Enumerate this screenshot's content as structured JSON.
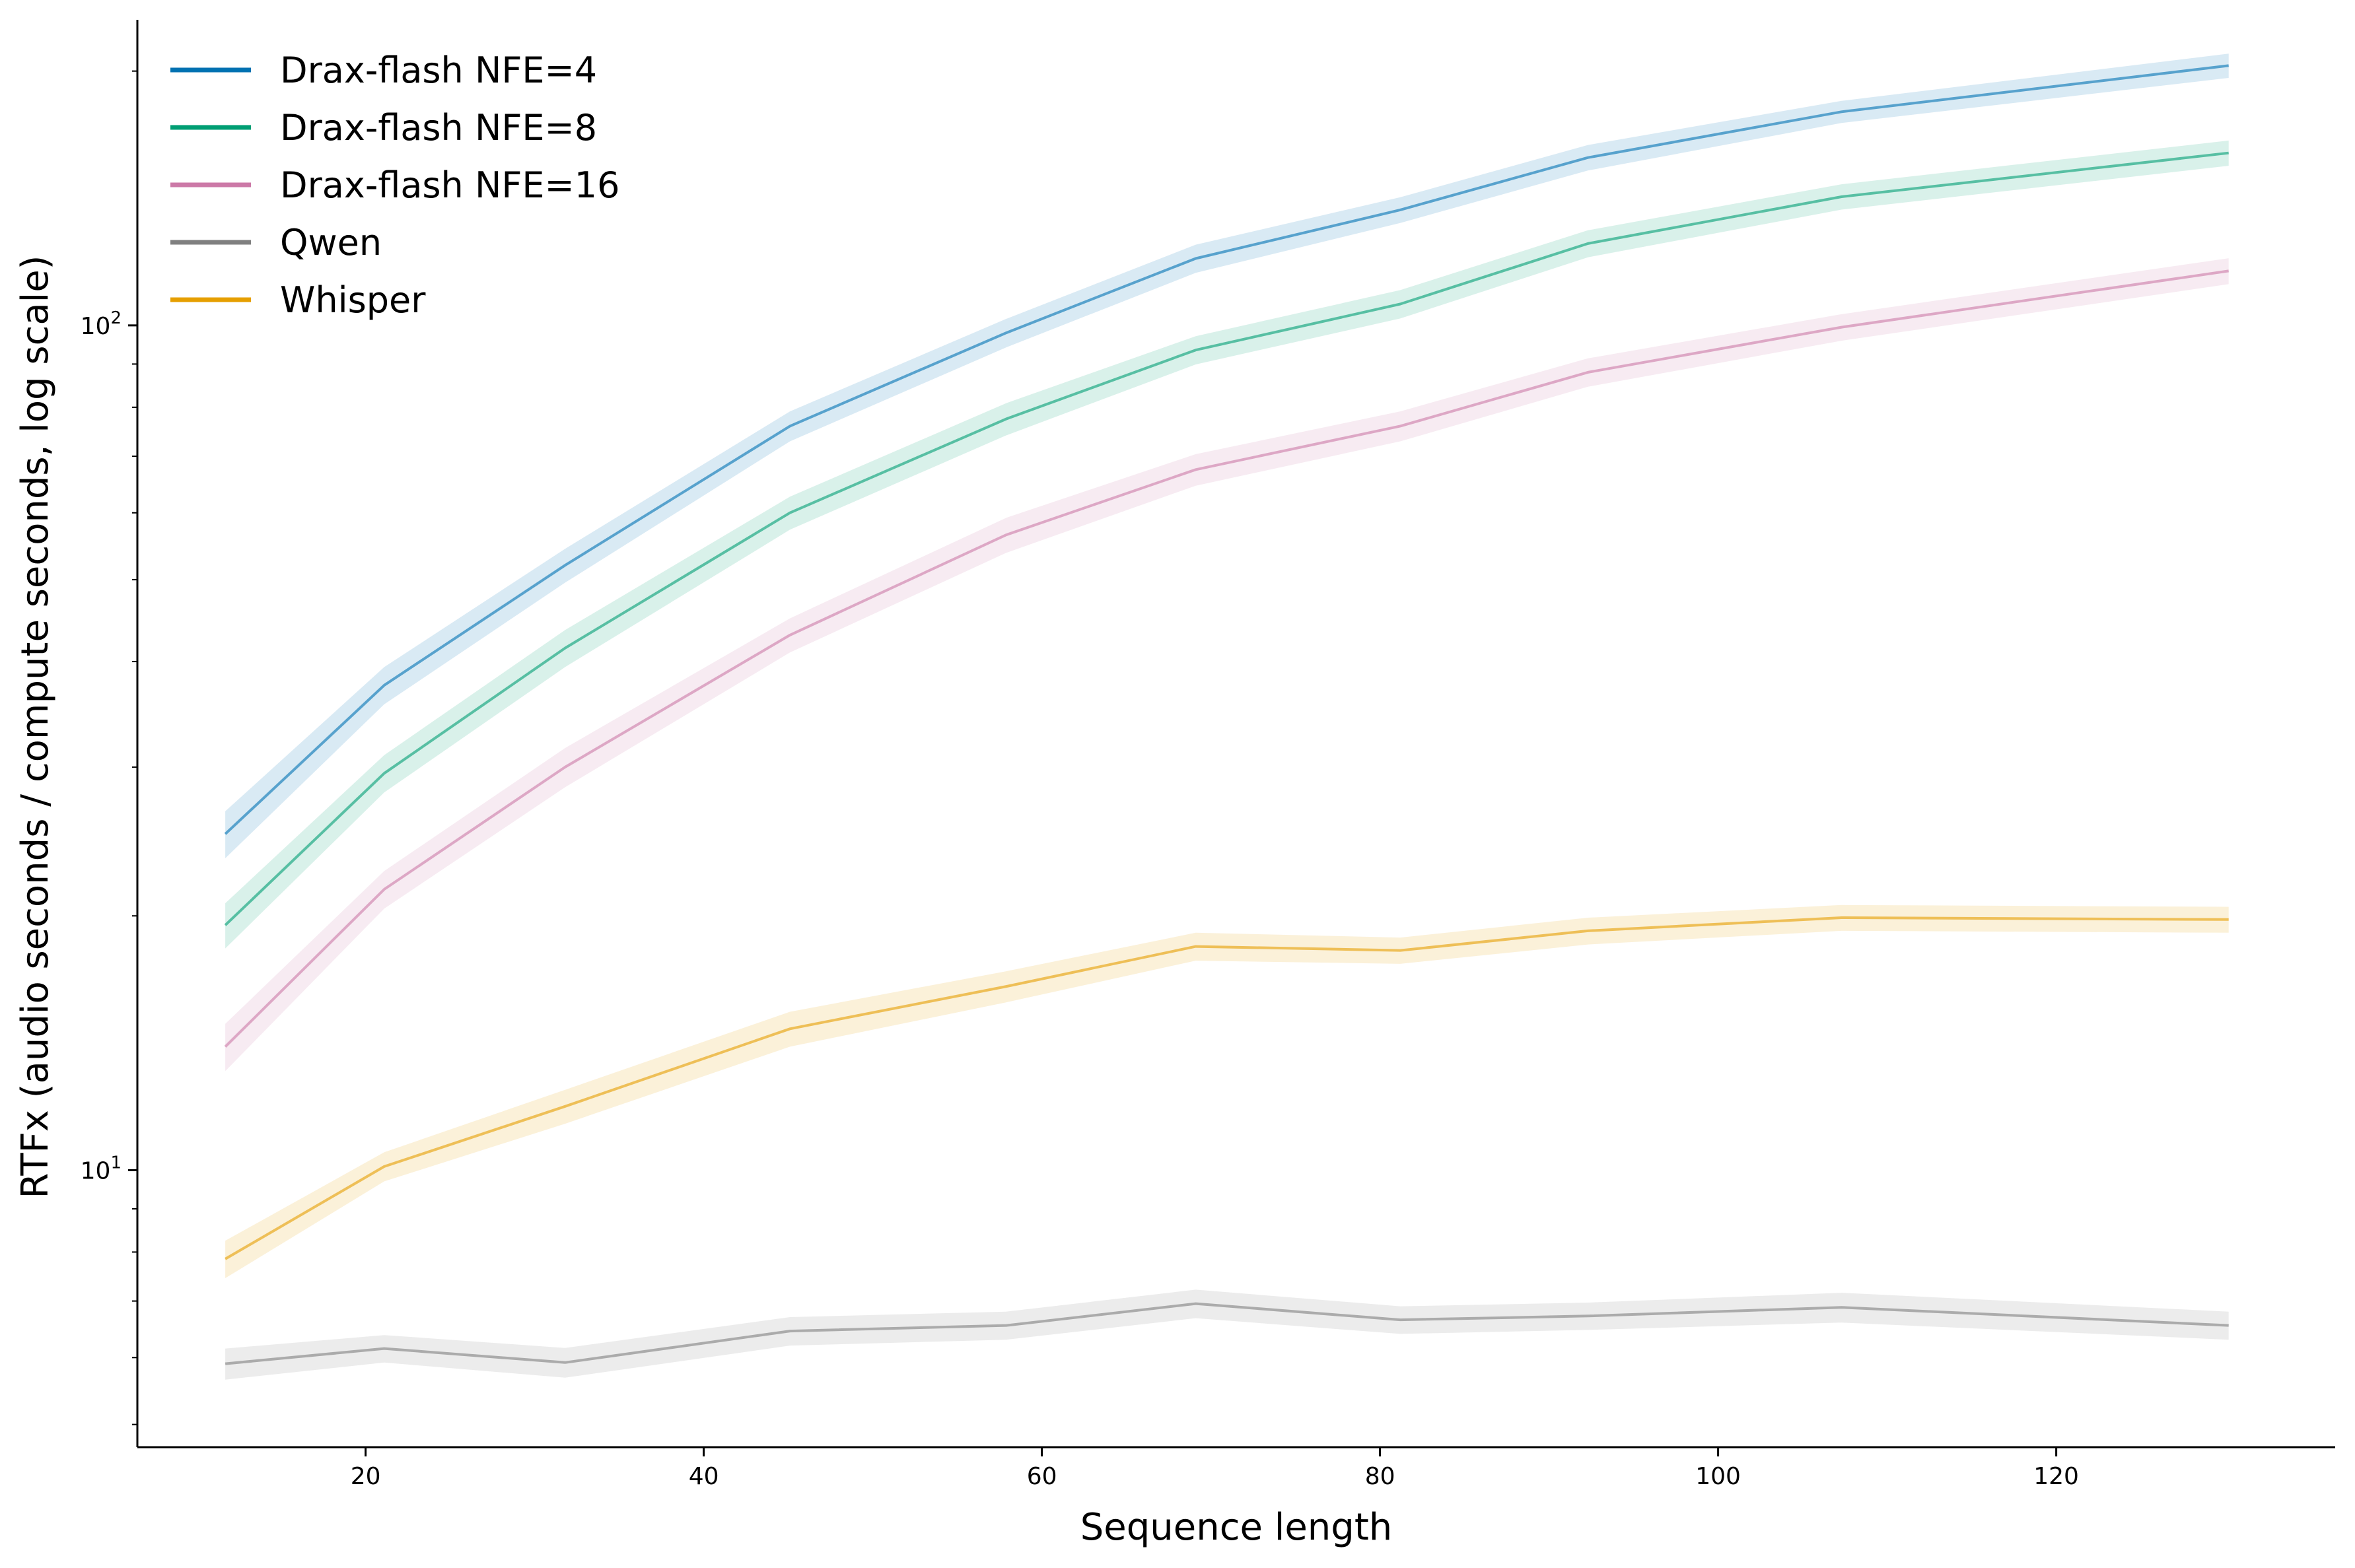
{
  "chart_data": {
    "type": "line",
    "title": "",
    "xlabel": "Sequence length",
    "ylabel": "RTFx (audio seconds / compute seconds, log scale)",
    "yscale": "log",
    "xlim": [
      6.5,
      136.5
    ],
    "ylim": [
      4.7,
      230
    ],
    "xticks": [
      20,
      40,
      60,
      80,
      100,
      120
    ],
    "xtick_labels": [
      "20",
      "40",
      "60",
      "80",
      "100",
      "120"
    ],
    "yticks_major": [
      {
        "value": 10,
        "base": "10",
        "exp": "1"
      },
      {
        "value": 100,
        "base": "10",
        "exp": "2"
      }
    ],
    "yticks_minor": [
      5,
      6,
      7,
      8,
      9,
      20,
      30,
      40,
      50,
      60,
      70,
      80,
      90,
      200
    ],
    "grid": false,
    "legend_position": "top-left",
    "x": [
      11.7,
      21.1,
      31.8,
      45.1,
      57.9,
      69.1,
      81.2,
      92.3,
      107.3,
      130.2
    ],
    "series": [
      {
        "name": "Drax-flash NFE=4",
        "color": "#0072B2",
        "values": [
          25.0,
          37.5,
          52.0,
          76.0,
          98.0,
          120.0,
          137.0,
          158.0,
          179.0,
          203.0
        ],
        "band_lower": [
          23.4,
          35.6,
          49.6,
          72.9,
          94.2,
          115.4,
          132.2,
          152.5,
          173.6,
          196.3
        ],
        "band_upper": [
          26.6,
          39.4,
          54.4,
          79.1,
          101.8,
          124.6,
          141.8,
          163.5,
          184.4,
          209.7
        ]
      },
      {
        "name": "Drax-flash NFE=8",
        "color": "#009E73",
        "values": [
          19.5,
          29.5,
          41.5,
          60.0,
          77.5,
          93.5,
          106.0,
          125.0,
          142.0,
          160.0
        ],
        "band_lower": [
          18.3,
          28.0,
          39.4,
          57.3,
          74.1,
          89.9,
          101.9,
          120.4,
          137.1,
          154.5
        ],
        "band_upper": [
          20.7,
          31.0,
          43.6,
          62.7,
          80.9,
          97.1,
          110.1,
          129.6,
          146.9,
          165.5
        ]
      },
      {
        "name": "Drax-flash NFE=16",
        "color": "#CC79A7",
        "values": [
          14.0,
          21.5,
          30.0,
          43.0,
          56.5,
          67.5,
          76.0,
          88.0,
          99.5,
          116.0
        ],
        "band_lower": [
          13.1,
          20.4,
          28.4,
          41.0,
          53.8,
          64.6,
          72.9,
          84.6,
          95.9,
          111.9
        ],
        "band_upper": [
          14.9,
          22.6,
          31.6,
          45.0,
          59.2,
          70.4,
          79.1,
          91.4,
          103.1,
          120.1
        ]
      },
      {
        "name": "Qwen",
        "color": "#808080",
        "values": [
          5.9,
          6.15,
          5.92,
          6.45,
          6.55,
          6.95,
          6.65,
          6.72,
          6.88,
          6.55
        ],
        "band_lower": [
          5.65,
          5.92,
          5.68,
          6.2,
          6.3,
          6.68,
          6.4,
          6.47,
          6.6,
          6.3
        ],
        "band_upper": [
          6.15,
          6.38,
          6.16,
          6.7,
          6.8,
          7.22,
          6.9,
          6.97,
          7.16,
          6.8
        ]
      },
      {
        "name": "Whisper",
        "color": "#E69F00",
        "values": [
          7.85,
          10.1,
          11.9,
          14.7,
          16.5,
          18.4,
          18.2,
          19.2,
          19.9,
          19.8
        ],
        "band_lower": [
          7.45,
          9.7,
          11.35,
          14.0,
          15.8,
          17.7,
          17.55,
          18.5,
          19.2,
          19.1
        ],
        "band_upper": [
          8.25,
          10.5,
          12.45,
          15.4,
          17.2,
          19.1,
          18.85,
          19.9,
          20.6,
          20.5
        ]
      }
    ]
  }
}
